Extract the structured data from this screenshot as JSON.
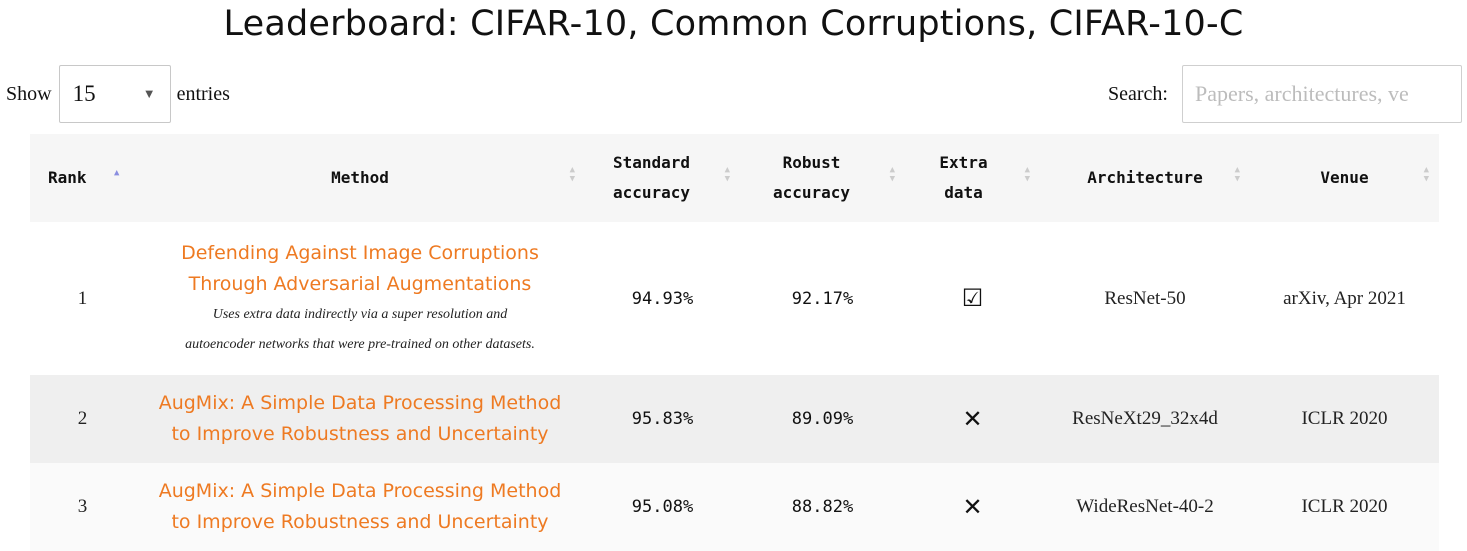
{
  "title": "Leaderboard: CIFAR-10, Common Corruptions, CIFAR-10-C",
  "controls": {
    "show_label": "Show",
    "entries_value": "15",
    "entries_label": "entries",
    "search_label": "Search:",
    "search_placeholder": "Papers, architectures, ve"
  },
  "columns": {
    "rank": "Rank",
    "method": "Method",
    "std_acc_1": "Standard",
    "std_acc_2": "accuracy",
    "rob_acc_1": "Robust",
    "rob_acc_2": "accuracy",
    "extra_1": "Extra",
    "extra_2": "data",
    "arch": "Architecture",
    "venue": "Venue"
  },
  "rows": [
    {
      "rank": "1",
      "title_1": "Defending Against Image Corruptions",
      "title_2": "Through Adversarial Augmentations",
      "note_1": "Uses extra data indirectly via a super resolution and",
      "note_2": "autoencoder networks that were pre-trained on other datasets.",
      "standard": "94.93%",
      "robust": "92.17%",
      "extra": "☑",
      "arch": "ResNet-50",
      "venue": "arXiv, Apr 2021"
    },
    {
      "rank": "2",
      "title_1": "AugMix: A Simple Data Processing Method",
      "title_2": "to Improve Robustness and Uncertainty",
      "standard": "95.83%",
      "robust": "89.09%",
      "extra": "✕",
      "arch": "ResNeXt29_32x4d",
      "venue": "ICLR 2020"
    },
    {
      "rank": "3",
      "title_1": "AugMix: A Simple Data Processing Method",
      "title_2": "to Improve Robustness and Uncertainty",
      "standard": "95.08%",
      "robust": "88.82%",
      "extra": "✕",
      "arch": "WideResNet-40-2",
      "venue": "ICLR 2020"
    }
  ],
  "colors": {
    "link": "#ee7a22",
    "sort_active": "#8a8ee0"
  }
}
